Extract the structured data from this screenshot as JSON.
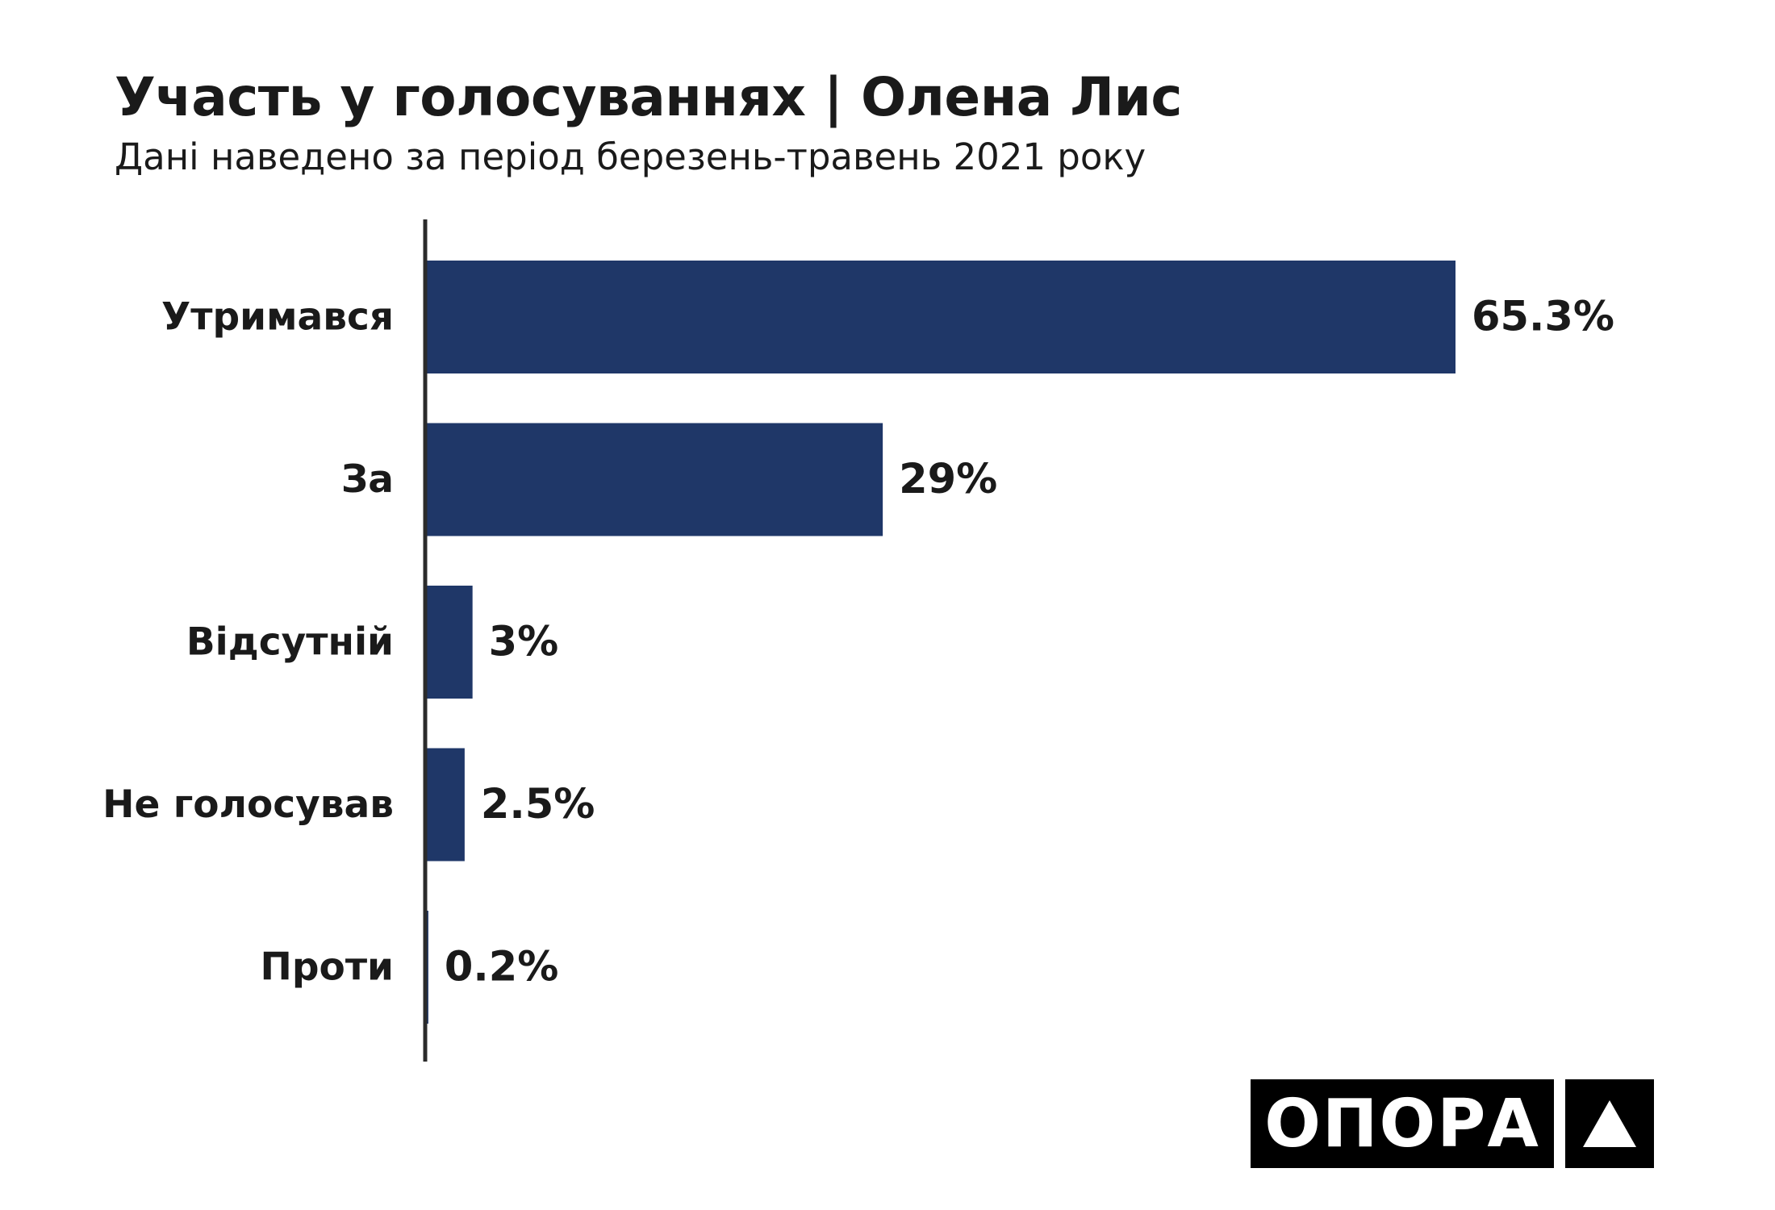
{
  "header": {
    "title": "Участь у голосуваннях | Олена Лис",
    "subtitle": "Дані наведено за період березень-травень 2021 року"
  },
  "chart_data": {
    "type": "bar",
    "orientation": "horizontal",
    "title": "Участь у голосуваннях | Олена Лис",
    "subtitle": "Дані наведено за період березень-травень 2021 року",
    "categories": [
      "Утримався",
      "За",
      "Відсутній",
      "Не голосував",
      "Проти"
    ],
    "values": [
      65.3,
      29,
      3,
      2.5,
      0.2
    ],
    "value_labels": [
      "65.3%",
      "29%",
      "3%",
      "2.5%",
      "0.2%"
    ],
    "unit": "%",
    "xlim": [
      0,
      65.3
    ],
    "grid": false,
    "legend": "none",
    "bar_color": "#1f3768",
    "axis_color": "#2b2b2b"
  },
  "logo": {
    "text": "ОПОРА",
    "icon": "triangle-icon",
    "background": "#000000",
    "foreground": "#ffffff"
  }
}
